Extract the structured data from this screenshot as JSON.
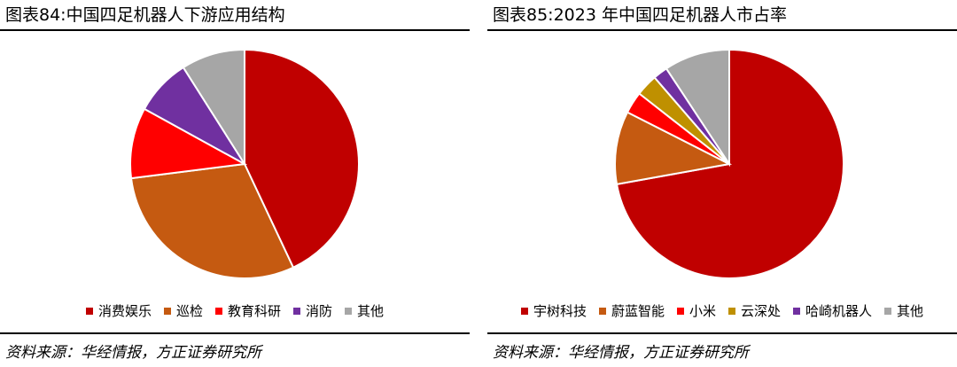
{
  "chart_data": [
    {
      "type": "pie",
      "title": "图表84:中国四足机器人下游应用结构",
      "source": "资料来源：华经情报，方正证券研究所",
      "legend_position": "bottom",
      "slices": [
        {
          "label": "消费娱乐",
          "value": 43,
          "color": "#C00000"
        },
        {
          "label": "巡检",
          "value": 30,
          "color": "#C55A11"
        },
        {
          "label": "教育科研",
          "value": 10,
          "color": "#FF0000"
        },
        {
          "label": "消防",
          "value": 8,
          "color": "#7030A0"
        },
        {
          "label": "其他",
          "value": 9,
          "color": "#A6A6A6"
        }
      ]
    },
    {
      "type": "pie",
      "title": "图表85:2023 年中国四足机器人市占率",
      "source": "资料来源：华经情报，方正证券研究所",
      "legend_position": "bottom",
      "slices": [
        {
          "label": "宇树科技",
          "value": 70,
          "color": "#C00000"
        },
        {
          "label": "蔚蓝智能",
          "value": 10,
          "color": "#C55A11"
        },
        {
          "label": "小米",
          "value": 3,
          "color": "#FF0000"
        },
        {
          "label": "云深处",
          "value": 3,
          "color": "#BF9000"
        },
        {
          "label": "哈崎机器人",
          "value": 2,
          "color": "#7030A0"
        },
        {
          "label": "其他",
          "value": 9,
          "color": "#A6A6A6"
        }
      ]
    }
  ]
}
